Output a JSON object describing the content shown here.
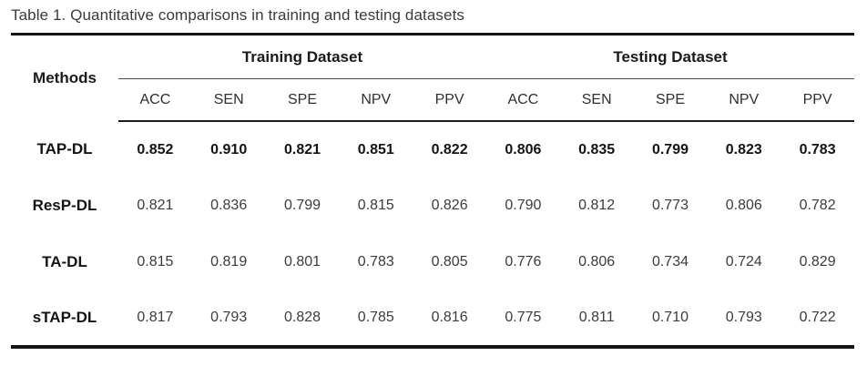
{
  "title": "Table 1. Quantitative comparisons in training and testing datasets",
  "table": {
    "methods_header": "Methods",
    "group_headers": [
      "Training Dataset",
      "Testing Dataset"
    ],
    "sub_headers": [
      "ACC",
      "SEN",
      "SPE",
      "NPV",
      "PPV",
      "ACC",
      "SEN",
      "SPE",
      "NPV",
      "PPV"
    ],
    "rows": [
      {
        "method": "TAP-DL",
        "values": [
          "0.852",
          "0.910",
          "0.821",
          "0.851",
          "0.822",
          "0.806",
          "0.835",
          "0.799",
          "0.823",
          "0.783"
        ]
      },
      {
        "method": "ResP-DL",
        "values": [
          "0.821",
          "0.836",
          "0.799",
          "0.815",
          "0.826",
          "0.790",
          "0.812",
          "0.773",
          "0.806",
          "0.782"
        ]
      },
      {
        "method": "TA-DL",
        "values": [
          "0.815",
          "0.819",
          "0.801",
          "0.783",
          "0.805",
          "0.776",
          "0.806",
          "0.734",
          "0.724",
          "0.829"
        ]
      },
      {
        "method": "sTAP-DL",
        "values": [
          "0.817",
          "0.793",
          "0.828",
          "0.785",
          "0.816",
          "0.775",
          "0.811",
          "0.710",
          "0.793",
          "0.722"
        ]
      }
    ]
  },
  "chart_data": {
    "type": "table",
    "title": "Table 1. Quantitative comparisons in training and testing datasets",
    "column_groups": [
      "Training Dataset",
      "Testing Dataset"
    ],
    "columns": [
      "Methods",
      "Training ACC",
      "Training SEN",
      "Training SPE",
      "Training NPV",
      "Training PPV",
      "Testing ACC",
      "Testing SEN",
      "Testing SPE",
      "Testing NPV",
      "Testing PPV"
    ],
    "rows": [
      [
        "TAP-DL",
        0.852,
        0.91,
        0.821,
        0.851,
        0.822,
        0.806,
        0.835,
        0.799,
        0.823,
        0.783
      ],
      [
        "ResP-DL",
        0.821,
        0.836,
        0.799,
        0.815,
        0.826,
        0.79,
        0.812,
        0.773,
        0.806,
        0.782
      ],
      [
        "TA-DL",
        0.815,
        0.819,
        0.801,
        0.783,
        0.805,
        0.776,
        0.806,
        0.734,
        0.724,
        0.829
      ],
      [
        "sTAP-DL",
        0.817,
        0.793,
        0.828,
        0.785,
        0.816,
        0.775,
        0.811,
        0.71,
        0.793,
        0.722
      ]
    ],
    "bold_row": "TAP-DL"
  }
}
